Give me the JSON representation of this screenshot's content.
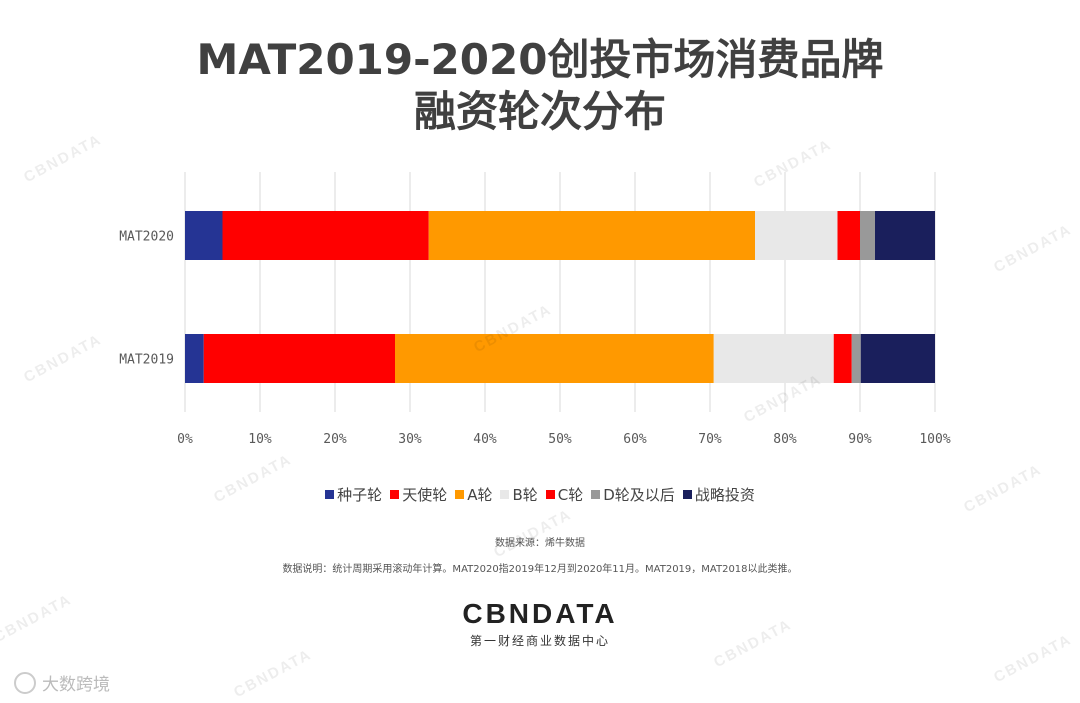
{
  "title": {
    "line1": "MAT2019-2020创投市场消费品牌",
    "line2": "融资轮次分布"
  },
  "chart_data": {
    "type": "bar",
    "orientation": "horizontal",
    "stacked": true,
    "stacked_percent": true,
    "categories": [
      "MAT2020",
      "MAT2019"
    ],
    "series": [
      {
        "name": "种子轮",
        "color": "#253494",
        "values": [
          5,
          2.5
        ]
      },
      {
        "name": "天使轮",
        "color": "#ff0000",
        "values": [
          27.5,
          25.5
        ]
      },
      {
        "name": "A轮",
        "color": "#ff9900",
        "values": [
          43.5,
          42.5
        ]
      },
      {
        "name": "B轮",
        "color": "#e8e8e8",
        "values": [
          11,
          16
        ]
      },
      {
        "name": "C轮",
        "color": "#ff0000",
        "values": [
          3,
          2.4
        ]
      },
      {
        "name": "D轮及以后",
        "color": "#999999",
        "values": [
          2,
          1.2
        ]
      },
      {
        "name": "战略投资",
        "color": "#1a1f5c",
        "values": [
          8,
          9.9
        ]
      }
    ],
    "xlim": [
      0,
      100
    ],
    "xticks": [
      "0%",
      "10%",
      "20%",
      "30%",
      "40%",
      "50%",
      "60%",
      "70%",
      "80%",
      "90%",
      "100%"
    ],
    "grid": true,
    "legend_position": "bottom"
  },
  "notes": {
    "source": "数据来源：烯牛数据",
    "explanation": "数据说明：统计周期采用滚动年计算。MAT2020指2019年12月到2020年11月。MAT2019，MAT2018以此类推。"
  },
  "logo": {
    "main": "CBNDATA",
    "sub": "第一财经商业数据中心"
  },
  "watermark": {
    "text": "CBNDATA",
    "source_mark": "大数跨境"
  }
}
